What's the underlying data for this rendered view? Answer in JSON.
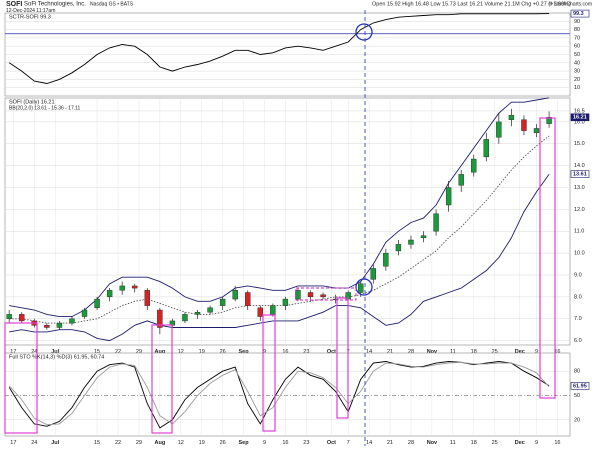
{
  "header": {
    "symbol": "SOFI",
    "company": "SoFi Technologies, Inc.",
    "exchange": "Nasdaq GS • BATS",
    "date": "12-Dec-2024 11:17am",
    "quote": "Open 15.92  High 16.48  Low 15.73  Last 16.21  Volume 21.1M  Chg +0.27 (+1.69%)",
    "credit": "© StockCharts.com"
  },
  "chart_data": [
    {
      "type": "line",
      "title": "SCTR-SOFI 99.3",
      "xlim": [
        -1,
        134
      ],
      "ylim": [
        0,
        100
      ],
      "yticks": [
        10,
        20,
        30,
        40,
        50,
        60,
        70,
        80,
        90
      ],
      "grid": true,
      "ref_line": 75,
      "ref_color": "#1f2fa8",
      "x": [
        0,
        3,
        6,
        9,
        12,
        15,
        18,
        21,
        24,
        27,
        30,
        33,
        36,
        39,
        42,
        45,
        48,
        51,
        54,
        57,
        60,
        63,
        66,
        69,
        72,
        75,
        78,
        81,
        84,
        87,
        90,
        93,
        96,
        99,
        102,
        105,
        108,
        111,
        114,
        117,
        120,
        123,
        126,
        129
      ],
      "series": [
        {
          "color": "#000000",
          "values": [
            40,
            30,
            18,
            15,
            20,
            28,
            38,
            50,
            58,
            62,
            60,
            50,
            35,
            30,
            35,
            38,
            42,
            48,
            55,
            55,
            50,
            52,
            58,
            60,
            58,
            55,
            60,
            65,
            80,
            88,
            92,
            95,
            96,
            97,
            98,
            98,
            99,
            99,
            99,
            99,
            99,
            99,
            99,
            99.3
          ]
        }
      ]
    },
    {
      "type": "candlestick",
      "title": "SOFI (Daily) 16.21",
      "subtitle": "BB(20,2.0) 13.61 - 15.36 - 17.11",
      "xlim": [
        -1,
        134
      ],
      "ylim": [
        5.8,
        17.0
      ],
      "yticks": [
        {
          "value": 6,
          "label": "6.0"
        },
        {
          "value": 7,
          "label": "7.0"
        },
        {
          "value": 8,
          "label": "8.0"
        },
        {
          "value": 9,
          "label": "9.0"
        },
        {
          "value": 10,
          "label": "10.0"
        },
        {
          "value": 11,
          "label": "11.0"
        },
        {
          "value": 12,
          "label": "12.0"
        },
        {
          "value": 13,
          "label": "13.0"
        },
        {
          "value": 14,
          "label": "14.0"
        },
        {
          "value": 15,
          "label": "15.0"
        },
        {
          "value": 16,
          "label": "16.0"
        },
        {
          "value": 16.5,
          "label": "16.5"
        }
      ],
      "grid": true,
      "up_color": "#1a9a3a",
      "down_color": "#d22424",
      "xticks": [
        {
          "value": 1,
          "label": "17"
        },
        {
          "value": 6,
          "label": "24"
        },
        {
          "value": 11,
          "label": "Jul"
        },
        {
          "value": 21,
          "label": "15"
        },
        {
          "value": 26,
          "label": "22"
        },
        {
          "value": 31,
          "label": "29"
        },
        {
          "value": 36,
          "label": "Aug"
        },
        {
          "value": 41,
          "label": "12"
        },
        {
          "value": 46,
          "label": "19"
        },
        {
          "value": 51,
          "label": "26"
        },
        {
          "value": 56,
          "label": "Sep"
        },
        {
          "value": 61,
          "label": "9"
        },
        {
          "value": 66,
          "label": "16"
        },
        {
          "value": 71,
          "label": "23"
        },
        {
          "value": 77,
          "label": "Oct"
        },
        {
          "value": 81,
          "label": "7"
        },
        {
          "value": 86,
          "label": "14"
        },
        {
          "value": 91,
          "label": "21"
        },
        {
          "value": 96,
          "label": "28"
        },
        {
          "value": 101,
          "label": "Nov"
        },
        {
          "value": 106,
          "label": "11"
        },
        {
          "value": 111,
          "label": "18"
        },
        {
          "value": 116,
          "label": "25"
        },
        {
          "value": 122,
          "label": "Dec"
        },
        {
          "value": 126,
          "label": "9"
        },
        {
          "value": 131,
          "label": "16"
        }
      ],
      "x": [
        0,
        3,
        6,
        9,
        12,
        15,
        18,
        21,
        24,
        27,
        30,
        33,
        36,
        39,
        42,
        45,
        48,
        51,
        54,
        57,
        60,
        63,
        66,
        69,
        72,
        75,
        78,
        81,
        84,
        87,
        90,
        93,
        96,
        99,
        102,
        105,
        108,
        111,
        114,
        117,
        120,
        123,
        126,
        129
      ],
      "open": [
        7.0,
        7.2,
        6.9,
        6.7,
        6.6,
        6.8,
        7.1,
        7.5,
        8.0,
        8.3,
        8.5,
        8.3,
        7.4,
        6.7,
        6.9,
        7.2,
        7.3,
        7.6,
        7.9,
        8.2,
        7.5,
        7.2,
        7.6,
        7.9,
        8.2,
        8.1,
        7.9,
        7.9,
        8.2,
        8.8,
        9.4,
        10.1,
        10.4,
        10.7,
        11.0,
        12.2,
        13.1,
        13.7,
        14.4,
        15.3,
        16.1,
        16.1,
        15.5,
        15.92
      ],
      "high": [
        7.4,
        7.3,
        7.0,
        6.8,
        6.9,
        7.1,
        7.5,
        8.0,
        8.4,
        8.7,
        8.6,
        8.4,
        7.5,
        7.0,
        7.3,
        7.4,
        7.6,
        8.0,
        8.5,
        8.3,
        7.6,
        7.7,
        8.0,
        8.4,
        8.3,
        8.2,
        8.1,
        8.3,
        8.7,
        9.5,
        10.2,
        10.6,
        10.8,
        11.0,
        12.0,
        13.3,
        13.8,
        14.5,
        15.5,
        16.4,
        16.6,
        16.3,
        15.9,
        16.48
      ],
      "low": [
        6.8,
        6.8,
        6.6,
        6.5,
        6.5,
        6.7,
        7.0,
        7.4,
        7.8,
        8.1,
        8.2,
        7.4,
        6.3,
        6.6,
        6.8,
        7.0,
        7.2,
        7.4,
        7.8,
        7.4,
        6.9,
        7.1,
        7.4,
        7.8,
        7.8,
        7.9,
        7.7,
        7.8,
        8.0,
        8.6,
        9.2,
        9.9,
        10.2,
        10.5,
        10.8,
        11.9,
        12.8,
        13.5,
        14.2,
        15.0,
        15.8,
        15.4,
        15.3,
        15.73
      ],
      "close": [
        7.2,
        6.9,
        6.7,
        6.6,
        6.8,
        7.0,
        7.4,
        7.9,
        8.3,
        8.5,
        8.4,
        7.6,
        6.6,
        6.9,
        7.2,
        7.3,
        7.5,
        7.9,
        8.3,
        7.6,
        7.1,
        7.6,
        7.9,
        8.3,
        8.0,
        8.0,
        7.9,
        8.2,
        8.6,
        9.3,
        10.0,
        10.4,
        10.6,
        10.8,
        11.8,
        13.0,
        13.6,
        14.3,
        15.2,
        16.0,
        16.3,
        15.6,
        15.7,
        16.21
      ],
      "bands": [
        {
          "color": "#1c1c6e",
          "values": [
            7.6,
            7.5,
            7.4,
            7.2,
            7.1,
            7.1,
            7.4,
            7.9,
            8.6,
            8.9,
            8.9,
            8.9,
            8.7,
            8.4,
            8.0,
            7.8,
            7.8,
            8.0,
            8.4,
            8.5,
            8.4,
            8.3,
            8.3,
            8.5,
            8.5,
            8.5,
            8.4,
            8.4,
            8.7,
            9.5,
            10.5,
            11.0,
            11.4,
            11.6,
            12.2,
            13.2,
            14.0,
            14.8,
            15.6,
            16.4,
            16.9,
            16.9,
            17.0,
            17.1
          ]
        },
        {
          "color": "#555555",
          "dashed": true,
          "values": [
            7.0,
            7.0,
            6.9,
            6.8,
            6.8,
            6.8,
            6.9,
            7.0,
            7.3,
            7.6,
            7.8,
            7.9,
            7.7,
            7.5,
            7.3,
            7.2,
            7.2,
            7.3,
            7.5,
            7.6,
            7.6,
            7.6,
            7.6,
            7.7,
            7.8,
            7.9,
            8.0,
            8.0,
            8.1,
            8.3,
            8.6,
            8.9,
            9.3,
            9.7,
            10.1,
            10.7,
            11.2,
            11.8,
            12.4,
            13.1,
            13.8,
            14.4,
            14.9,
            15.36
          ]
        },
        {
          "color": "#1c1c6e",
          "values": [
            6.4,
            6.5,
            6.4,
            6.4,
            6.5,
            6.5,
            6.4,
            6.1,
            6.0,
            6.3,
            6.7,
            6.9,
            6.7,
            6.6,
            6.6,
            6.6,
            6.6,
            6.6,
            6.6,
            6.7,
            6.8,
            6.9,
            6.9,
            6.9,
            7.1,
            7.3,
            7.6,
            7.6,
            7.5,
            7.1,
            6.7,
            6.8,
            7.2,
            7.8,
            8.0,
            8.2,
            8.4,
            8.8,
            9.2,
            9.8,
            10.7,
            11.9,
            12.8,
            13.61
          ]
        }
      ]
    },
    {
      "type": "line",
      "title": "Full STO %K(14,3) %D(3) 61.95, 60.74",
      "xlim": [
        -1,
        134
      ],
      "ylim": [
        0,
        100
      ],
      "yticks": [
        20,
        50,
        80
      ],
      "grid": true,
      "xticks": [
        {
          "value": 1,
          "label": "17"
        },
        {
          "value": 6,
          "label": "24"
        },
        {
          "value": 11,
          "label": "Jul"
        },
        {
          "value": 21,
          "label": "15"
        },
        {
          "value": 26,
          "label": "22"
        },
        {
          "value": 31,
          "label": "29"
        },
        {
          "value": 36,
          "label": "Aug"
        },
        {
          "value": 41,
          "label": "12"
        },
        {
          "value": 46,
          "label": "19"
        },
        {
          "value": 51,
          "label": "26"
        },
        {
          "value": 56,
          "label": "Sep"
        },
        {
          "value": 61,
          "label": "9"
        },
        {
          "value": 66,
          "label": "16"
        },
        {
          "value": 71,
          "label": "23"
        },
        {
          "value": 77,
          "label": "Oct"
        },
        {
          "value": 81,
          "label": "7"
        },
        {
          "value": 86,
          "label": "14"
        },
        {
          "value": 91,
          "label": "21"
        },
        {
          "value": 96,
          "label": "28"
        },
        {
          "value": 101,
          "label": "Nov"
        },
        {
          "value": 106,
          "label": "11"
        },
        {
          "value": 111,
          "label": "18"
        },
        {
          "value": 116,
          "label": "25"
        },
        {
          "value": 122,
          "label": "Dec"
        },
        {
          "value": 126,
          "label": "9"
        },
        {
          "value": 131,
          "label": "16"
        }
      ],
      "x": [
        0,
        3,
        6,
        9,
        12,
        15,
        18,
        21,
        24,
        27,
        30,
        33,
        36,
        39,
        42,
        45,
        48,
        51,
        54,
        57,
        60,
        63,
        66,
        69,
        72,
        75,
        78,
        81,
        84,
        87,
        90,
        93,
        96,
        99,
        102,
        105,
        108,
        111,
        114,
        117,
        120,
        123,
        126,
        129
      ],
      "series": [
        {
          "color": "#000000",
          "values": [
            60,
            35,
            15,
            12,
            18,
            35,
            60,
            80,
            88,
            90,
            85,
            40,
            10,
            20,
            45,
            60,
            70,
            80,
            85,
            40,
            15,
            45,
            70,
            85,
            75,
            70,
            55,
            30,
            70,
            90,
            92,
            88,
            85,
            86,
            90,
            92,
            91,
            88,
            90,
            92,
            90,
            80,
            72,
            61.95
          ]
        },
        {
          "color": "#9a9a9a",
          "values": [
            62,
            45,
            22,
            14,
            15,
            28,
            50,
            72,
            85,
            89,
            87,
            60,
            25,
            15,
            30,
            50,
            65,
            75,
            82,
            55,
            25,
            35,
            60,
            80,
            78,
            72,
            60,
            40,
            55,
            80,
            90,
            89,
            86,
            85,
            88,
            90,
            91,
            89,
            89,
            90,
            90,
            85,
            78,
            60.74
          ]
        }
      ]
    }
  ]
}
